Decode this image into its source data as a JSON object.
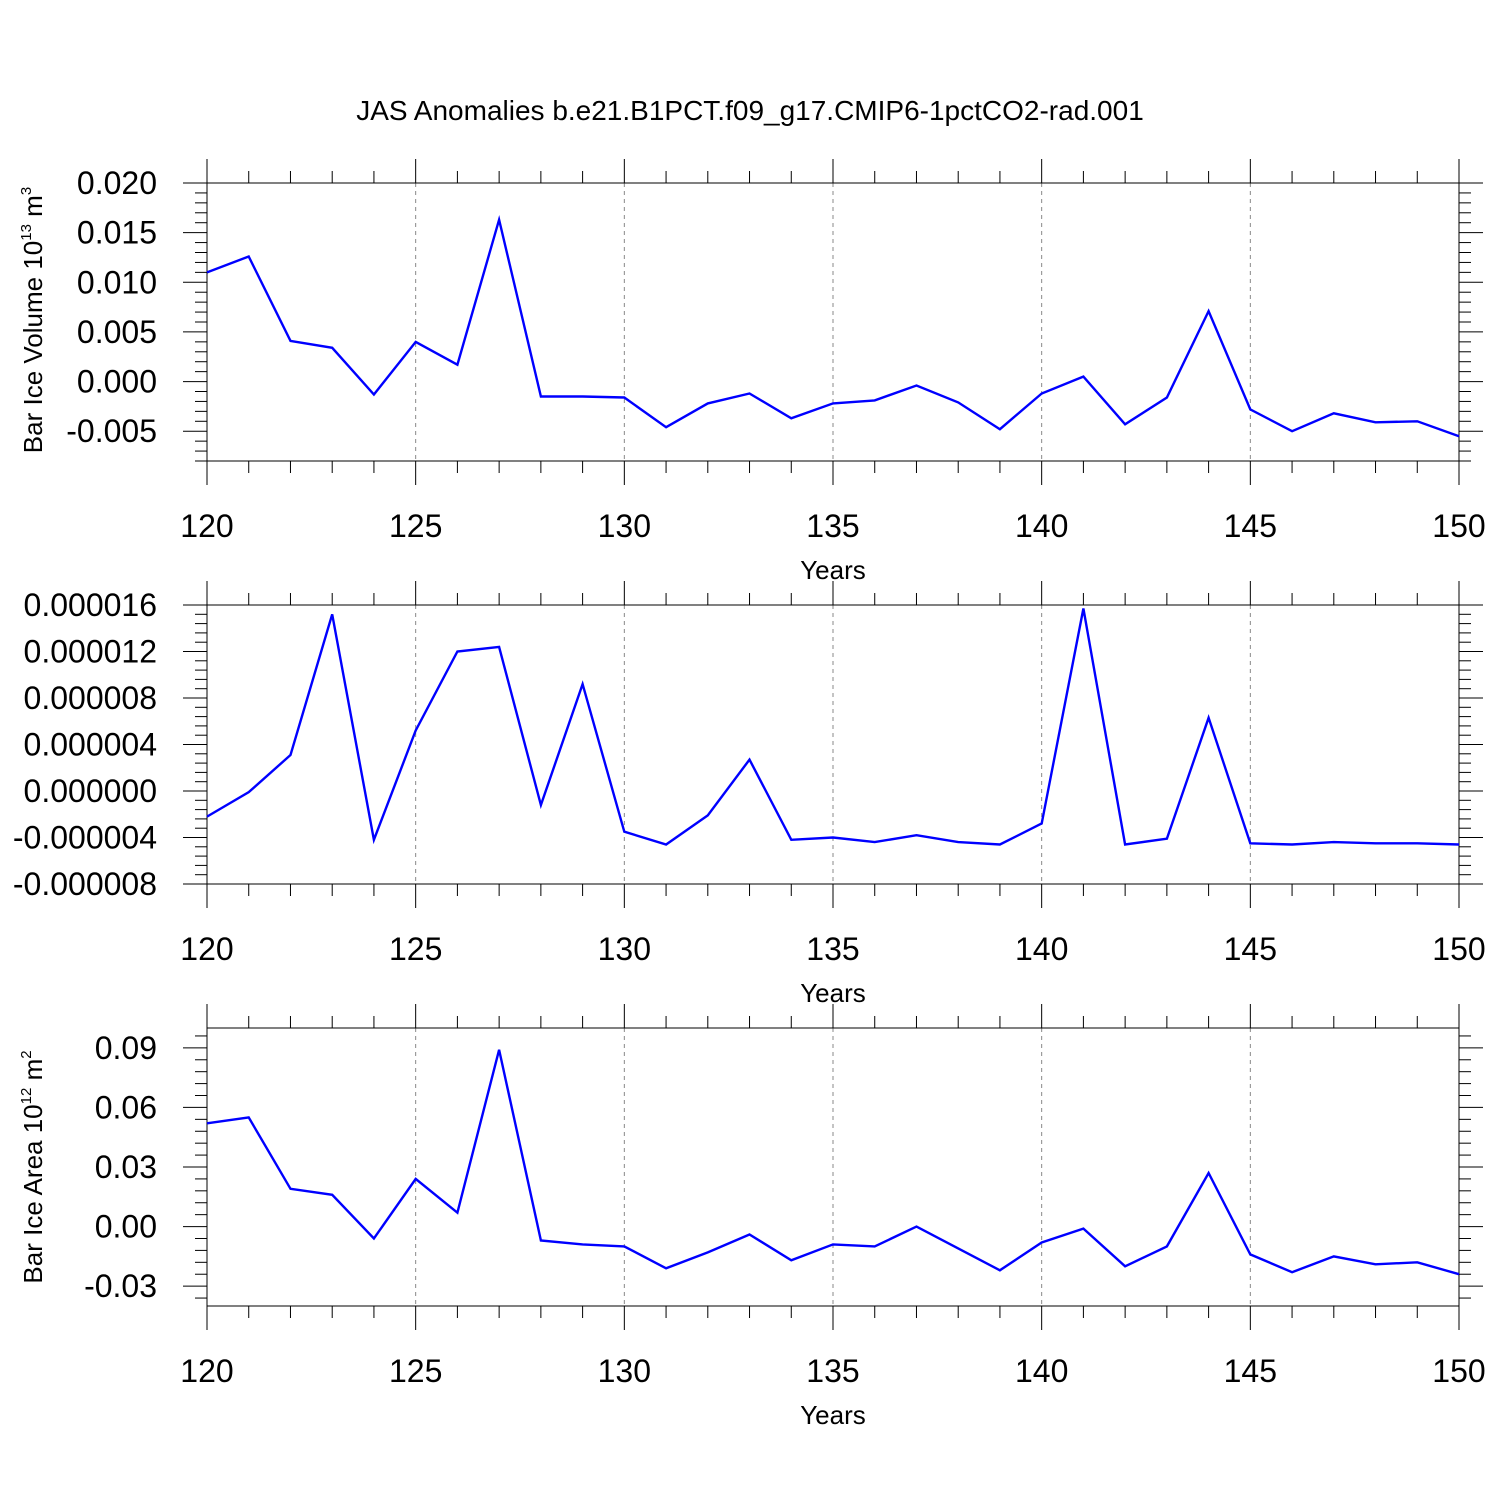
{
  "title": "JAS Anomalies b.e21.B1PCT.f09_g17.CMIP6-1pctCO2-rad.001",
  "line_color": "#0000ff",
  "chart_data": [
    {
      "type": "line",
      "xlabel": "Years",
      "ylabel": {
        "prefix": "Bar Ice Volume 10",
        "exponent": "13",
        "unit": " m",
        "unit_exponent": "3"
      },
      "xlim": [
        120,
        150
      ],
      "ylim": [
        -0.008,
        0.02
      ],
      "x_ticks": [
        120,
        125,
        130,
        135,
        140,
        145,
        150
      ],
      "x_tick_labels": [
        "120",
        "125",
        "130",
        "135",
        "140",
        "145",
        "150"
      ],
      "y_ticks": [
        -0.005,
        0.0,
        0.005,
        0.01,
        0.015,
        0.02
      ],
      "y_tick_labels": [
        "-0.005",
        "0.000",
        "0.005",
        "0.010",
        "0.015",
        "0.020"
      ],
      "grid": "vertical dashed at major x ticks",
      "x": [
        120,
        121,
        122,
        123,
        124,
        125,
        126,
        127,
        128,
        129,
        130,
        131,
        132,
        133,
        134,
        135,
        136,
        137,
        138,
        139,
        140,
        141,
        142,
        143,
        144,
        145,
        146,
        147,
        148,
        149,
        150
      ],
      "values": [
        0.011,
        0.0126,
        0.0041,
        0.0034,
        -0.0013,
        0.004,
        0.0017,
        0.0163,
        -0.0015,
        -0.0015,
        -0.0016,
        -0.0046,
        -0.0022,
        -0.0012,
        -0.0037,
        -0.0022,
        -0.0019,
        -0.0004,
        -0.0021,
        -0.0048,
        -0.0012,
        0.0005,
        -0.0043,
        -0.0016,
        0.0071,
        -0.0028,
        -0.005,
        -0.0032,
        -0.0041,
        -0.004,
        -0.0055
      ]
    },
    {
      "type": "line",
      "xlabel": "Years",
      "ylabel": null,
      "xlim": [
        120,
        150
      ],
      "ylim": [
        -8e-06,
        1.6e-05
      ],
      "x_ticks": [
        120,
        125,
        130,
        135,
        140,
        145,
        150
      ],
      "x_tick_labels": [
        "120",
        "125",
        "130",
        "135",
        "140",
        "145",
        "150"
      ],
      "y_ticks": [
        -8e-06,
        -4e-06,
        0.0,
        4e-06,
        8e-06,
        1.2e-05,
        1.6e-05
      ],
      "y_tick_labels": [
        "-0.000008",
        "-0.000004",
        "0.000000",
        "0.000004",
        "0.000008",
        "0.000012",
        "0.000016"
      ],
      "grid": "vertical dashed at major x ticks",
      "x": [
        120,
        121,
        122,
        123,
        124,
        125,
        126,
        127,
        128,
        129,
        130,
        131,
        132,
        133,
        134,
        135,
        136,
        137,
        138,
        139,
        140,
        141,
        142,
        143,
        144,
        145,
        146,
        147,
        148,
        149,
        150
      ],
      "values": [
        -2.2e-06,
        -1e-07,
        3.1e-06,
        1.52e-05,
        -4.2e-06,
        5.2e-06,
        1.2e-05,
        1.24e-05,
        -1.2e-06,
        9.2e-06,
        -3.5e-06,
        -4.6e-06,
        -2.1e-06,
        2.7e-06,
        -4.2e-06,
        -4e-06,
        -4.4e-06,
        -3.8e-06,
        -4.4e-06,
        -4.6e-06,
        -2.8e-06,
        1.57e-05,
        -4.6e-06,
        -4.1e-06,
        6.3e-06,
        -4.5e-06,
        -4.6e-06,
        -4.4e-06,
        -4.5e-06,
        -4.5e-06,
        -4.6e-06
      ]
    },
    {
      "type": "line",
      "xlabel": "Years",
      "ylabel": {
        "prefix": "Bar Ice Area 10",
        "exponent": "12",
        "unit": " m",
        "unit_exponent": "2"
      },
      "xlim": [
        120,
        150
      ],
      "ylim": [
        -0.04,
        0.1
      ],
      "x_ticks": [
        120,
        125,
        130,
        135,
        140,
        145,
        150
      ],
      "x_tick_labels": [
        "120",
        "125",
        "130",
        "135",
        "140",
        "145",
        "150"
      ],
      "y_ticks": [
        -0.03,
        0.0,
        0.03,
        0.06,
        0.09
      ],
      "y_tick_labels": [
        "-0.03",
        "0.00",
        "0.03",
        "0.06",
        "0.09"
      ],
      "grid": "vertical dashed at major x ticks",
      "x": [
        120,
        121,
        122,
        123,
        124,
        125,
        126,
        127,
        128,
        129,
        130,
        131,
        132,
        133,
        134,
        135,
        136,
        137,
        138,
        139,
        140,
        141,
        142,
        143,
        144,
        145,
        146,
        147,
        148,
        149,
        150
      ],
      "values": [
        0.052,
        0.055,
        0.019,
        0.016,
        -0.006,
        0.024,
        0.007,
        0.089,
        -0.007,
        -0.009,
        -0.01,
        -0.021,
        -0.013,
        -0.004,
        -0.017,
        -0.009,
        -0.01,
        0.0,
        -0.011,
        -0.022,
        -0.008,
        -0.001,
        -0.02,
        -0.01,
        0.027,
        -0.014,
        -0.023,
        -0.015,
        -0.019,
        -0.018,
        -0.024
      ]
    }
  ]
}
